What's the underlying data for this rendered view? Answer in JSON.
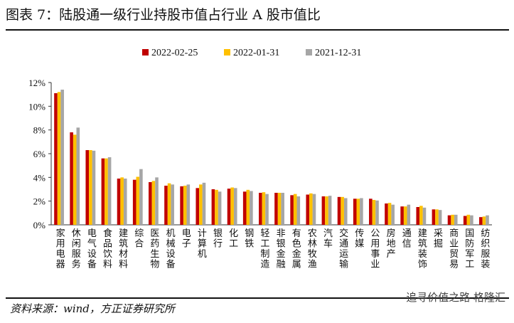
{
  "title": "图表 7：陆股通一级行业持股市值占行业 A 股市值比",
  "source": "资料来源：wind，方正证券研究所",
  "watermark": "追寻价值之路  格隆汇",
  "chart_data": {
    "type": "bar",
    "categories": [
      "家用电器",
      "休闲服务",
      "电气设备",
      "食品饮料",
      "建筑材料",
      "综合",
      "医药生物",
      "机械设备",
      "电子",
      "计算机",
      "银行",
      "化工",
      "钢铁",
      "轻工制造",
      "非银金融",
      "有色金属",
      "农林牧渔",
      "汽车",
      "交通运输",
      "传媒",
      "公用事业",
      "房地产",
      "通信",
      "建筑装饰",
      "采掘",
      "商业贸易",
      "国防军工",
      "纺织服装"
    ],
    "series": [
      {
        "name": "2022-02-25",
        "color": "#c00000",
        "values": [
          11.1,
          7.8,
          6.3,
          5.6,
          3.9,
          3.8,
          3.6,
          3.3,
          3.25,
          3.1,
          3.0,
          3.05,
          2.8,
          2.7,
          2.7,
          2.5,
          2.55,
          2.4,
          2.35,
          2.2,
          2.2,
          1.8,
          1.55,
          1.5,
          1.3,
          0.8,
          0.75,
          0.65
        ]
      },
      {
        "name": "2022-01-31",
        "color": "#ffc000",
        "values": [
          11.2,
          7.6,
          6.3,
          5.6,
          4.0,
          4.05,
          3.7,
          3.5,
          3.3,
          3.4,
          2.95,
          3.15,
          2.95,
          2.75,
          2.7,
          2.6,
          2.65,
          2.4,
          2.35,
          2.2,
          2.1,
          1.85,
          1.55,
          1.6,
          1.3,
          0.85,
          0.85,
          0.7
        ]
      },
      {
        "name": "2021-12-31",
        "color": "#a6a6a6",
        "values": [
          11.4,
          8.2,
          6.25,
          5.7,
          3.9,
          4.7,
          4.0,
          3.4,
          3.4,
          3.55,
          2.8,
          3.1,
          2.85,
          2.6,
          2.7,
          2.4,
          2.6,
          2.45,
          2.25,
          2.25,
          2.05,
          1.7,
          1.7,
          1.45,
          1.25,
          0.85,
          0.8,
          0.8
        ]
      }
    ],
    "ylim": [
      0,
      12
    ],
    "yticks": [
      "0%",
      "2%",
      "4%",
      "6%",
      "8%",
      "10%",
      "12%"
    ],
    "ylabel": "",
    "xlabel": "",
    "grid": false,
    "legend": "top-center"
  }
}
